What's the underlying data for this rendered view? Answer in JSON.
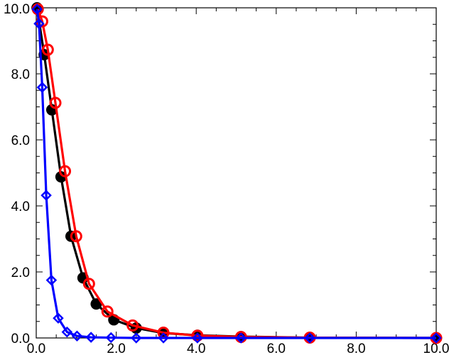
{
  "chart_data": {
    "type": "line",
    "title": "",
    "xlabel": "",
    "ylabel": "",
    "xlim": [
      0,
      10
    ],
    "ylim": [
      0,
      10
    ],
    "grid": false,
    "x_ticks": [
      "0.0",
      "2.0",
      "4.0",
      "6.0",
      "8.0",
      "10.0"
    ],
    "y_ticks": [
      "0.0",
      "2.0",
      "4.0",
      "6.0",
      "8.0",
      "10.0"
    ],
    "x_tick_values": [
      0,
      2,
      4,
      6,
      8,
      10
    ],
    "y_tick_values": [
      0,
      2,
      4,
      6,
      8,
      10
    ],
    "series": [
      {
        "color": "#000000",
        "marker": "filled-circle",
        "x": [
          0.02,
          0.2,
          0.39,
          0.62,
          0.87,
          1.17,
          1.5,
          1.94,
          2.5,
          3.18,
          4.03,
          5.12,
          6.84,
          10.0
        ],
        "y": [
          10.0,
          8.58,
          6.91,
          4.88,
          3.08,
          1.82,
          1.03,
          0.55,
          0.3,
          0.15,
          0.08,
          0.04,
          0.01,
          0.0
        ]
      },
      {
        "color": "#ff0000",
        "marker": "open-circle",
        "x": [
          0.04,
          0.15,
          0.29,
          0.48,
          0.72,
          1.0,
          1.32,
          1.78,
          2.41,
          3.18,
          4.03,
          5.12,
          6.84,
          10.0
        ],
        "y": [
          9.96,
          9.59,
          8.73,
          7.12,
          5.05,
          3.08,
          1.64,
          0.8,
          0.38,
          0.16,
          0.07,
          0.03,
          0.01,
          0.0
        ]
      },
      {
        "color": "#0000ff",
        "marker": "open-diamond",
        "x": [
          0.02,
          0.07,
          0.15,
          0.25,
          0.38,
          0.55,
          0.77,
          1.02,
          1.37,
          1.87,
          2.5,
          3.18,
          4.03,
          5.12,
          6.84,
          10.0
        ],
        "y": [
          9.96,
          9.52,
          7.59,
          4.32,
          1.75,
          0.6,
          0.18,
          0.06,
          0.02,
          0.01,
          0.0,
          0.0,
          0.0,
          0.0,
          0.0,
          0.0
        ]
      }
    ]
  }
}
